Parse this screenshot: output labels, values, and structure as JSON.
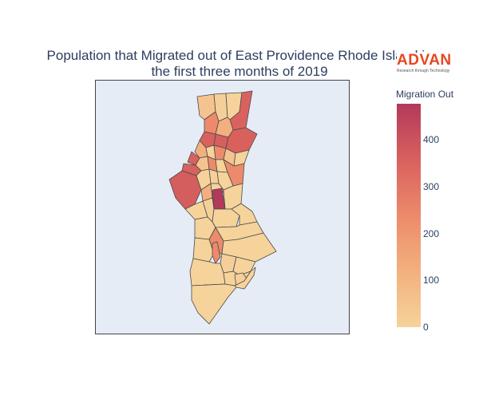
{
  "title_line1": "Population that Migrated out of East Providence Rhode Island in",
  "title_line2": "the first three months of 2019",
  "logo": {
    "word": "ADVAN",
    "tagline": "Research through Technology"
  },
  "colorbar": {
    "title": "Migration Out",
    "ticks": [
      "0",
      "100",
      "200",
      "300",
      "400"
    ],
    "range": [
      0,
      480
    ],
    "colors": [
      "#f5d39b",
      "#f3b07e",
      "#ec8a6b",
      "#d8615e",
      "#b2395c"
    ]
  },
  "map": {
    "background": "#e5ecf6",
    "region_count": 45
  }
}
